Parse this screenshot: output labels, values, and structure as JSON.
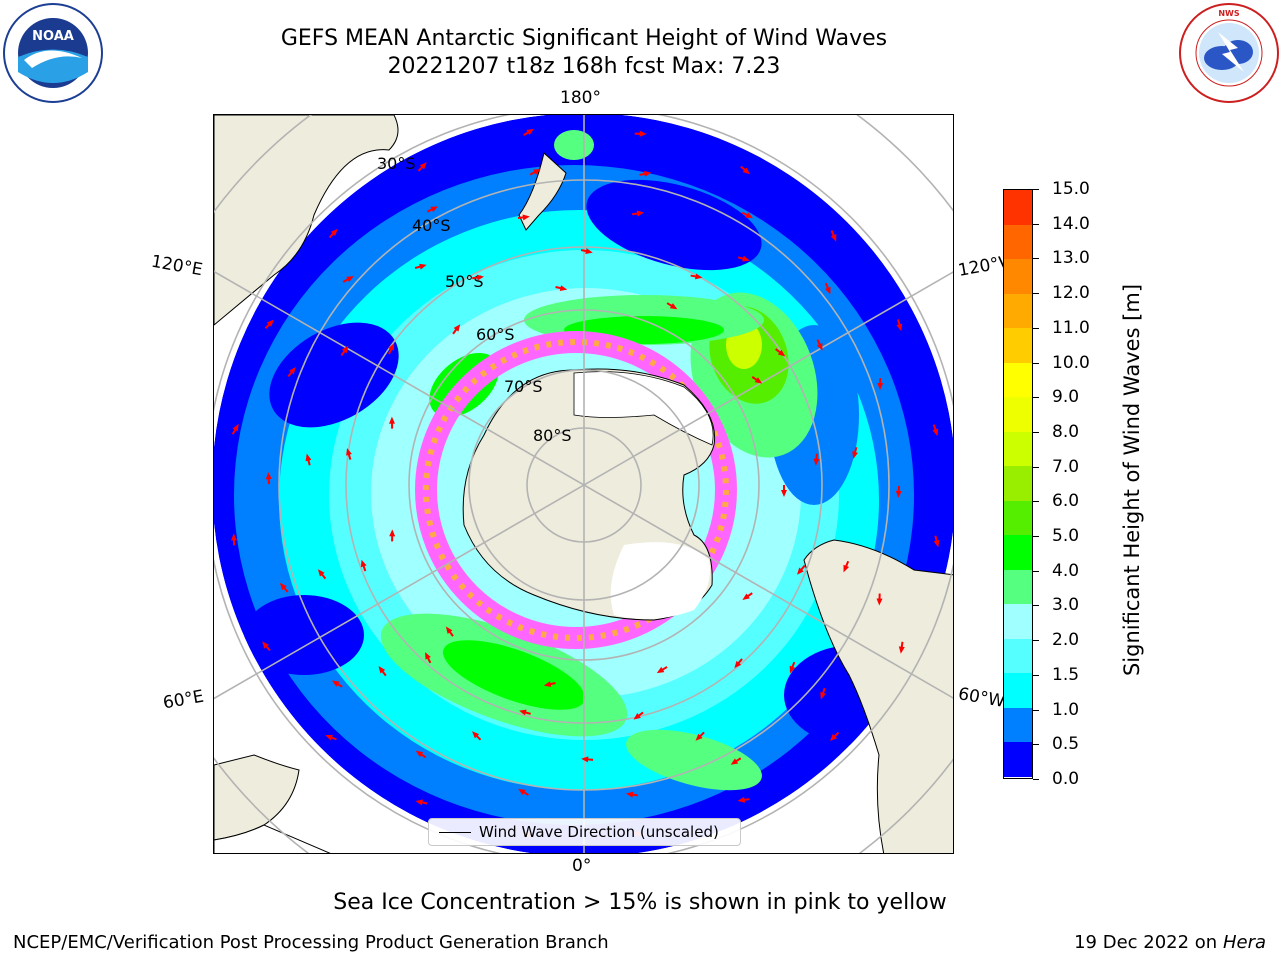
{
  "title": {
    "line1": "GEFS MEAN Antarctic Significant Height of Wind Waves",
    "line2": "20221207 t18z 168h fcst   Max: 7.23"
  },
  "logos": {
    "noaa_text": "NOAA",
    "noaa_ring_text": "NATIONAL OCEANIC AND ATMOSPHERIC ADMINISTRATION · U.S. DEPARTMENT OF COMMERCE",
    "nws_ring_text": "NATIONAL WEATHER SERVICE"
  },
  "map": {
    "projection": "south-polar-stereographic",
    "lon_labels": {
      "top": "180°",
      "bottom": "0°",
      "upper_left": "120°E",
      "upper_right": "120°W",
      "lower_left": "60°E",
      "lower_right": "60°W"
    },
    "lat_labels": [
      "30°S",
      "40°S",
      "50°S",
      "60°S",
      "70°S",
      "80°S"
    ],
    "legend": "Wind Wave Direction (unscaled)",
    "colors": {
      "land": "#eeecdc",
      "sea_ice_shelf": "#ffffff",
      "graticule": "#b3b3b3",
      "arrow": "#ff0000"
    }
  },
  "colorbar": {
    "label": "Significant Height of Wind Waves [m]",
    "ticks": [
      "0.0",
      "0.5",
      "1.0",
      "1.5",
      "2.0",
      "3.0",
      "4.0",
      "5.0",
      "6.0",
      "7.0",
      "8.0",
      "9.0",
      "10.0",
      "11.0",
      "12.0",
      "13.0",
      "14.0",
      "15.0"
    ],
    "colors": [
      "#0000ff",
      "#0080ff",
      "#00ffff",
      "#55ffff",
      "#a0ffff",
      "#55ff80",
      "#00ff00",
      "#55ee00",
      "#99ee00",
      "#ccff00",
      "#eeff00",
      "#ffff00",
      "#ffcc00",
      "#ffaa00",
      "#ff8800",
      "#ff6600",
      "#ff3300"
    ]
  },
  "note": "Sea Ice Concentration > 15% is shown in pink to yellow",
  "footer": {
    "left": "NCEP/EMC/Verification Post Processing Product Generation Branch",
    "right_date": "19 Dec 2022 on",
    "right_host": "Hera"
  }
}
